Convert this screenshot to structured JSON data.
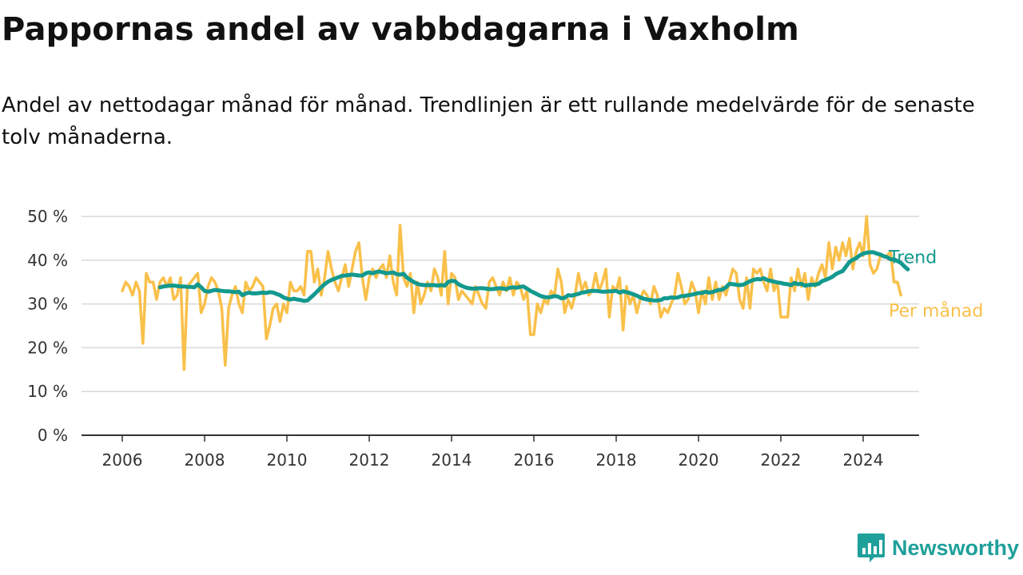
{
  "title": "Pappornas andel av vabbdagarna i Vaxholm",
  "subtitle": "Andel av nettodagar månad för månad. Trendlinjen är ett rullande medelvärde för de senaste tolv månaderna.",
  "brand": {
    "name": "Newsworthy",
    "color": "#1fa09a",
    "icon": "newsworthy-chart-bubble-icon"
  },
  "colors": {
    "trend": "#13998e",
    "monthly": "#f9c04a",
    "grid": "#d9d9d9",
    "axis": "#333333"
  },
  "chart_data": {
    "type": "line",
    "x_unit": "year",
    "xticks": [
      2006,
      2008,
      2010,
      2012,
      2014,
      2016,
      2018,
      2020,
      2022,
      2024
    ],
    "xtick_labels": [
      "2006",
      "2008",
      "2010",
      "2012",
      "2014",
      "2016",
      "2018",
      "2020",
      "2022",
      "2024"
    ],
    "xlim": [
      2005.0,
      2025.25
    ],
    "ylim": [
      0,
      50
    ],
    "yticks": [
      0,
      10,
      20,
      30,
      40,
      50
    ],
    "ytick_labels": [
      "0 %",
      "10 %",
      "20 %",
      "30 %",
      "40 %",
      "50 %"
    ],
    "grid": true,
    "legend_placement": "end-of-line labels, right",
    "series": [
      {
        "name": "Per månad",
        "color": "#f9c04a",
        "x_start": 2006.0,
        "x_step_months": 1,
        "values": [
          33,
          35,
          34,
          32,
          35,
          33,
          21,
          37,
          35,
          35,
          31,
          35,
          36,
          34,
          36,
          31,
          32,
          36,
          15,
          34,
          35,
          36,
          37,
          28,
          30,
          34,
          36,
          35,
          33,
          29,
          16,
          29,
          32,
          34,
          30,
          28,
          35,
          33,
          34,
          36,
          35,
          34,
          22,
          25,
          29,
          30,
          26,
          30,
          28,
          35,
          33,
          33,
          34,
          32,
          42,
          42,
          35,
          38,
          32,
          36,
          42,
          38,
          35,
          33,
          36,
          39,
          34,
          38,
          42,
          44,
          36,
          31,
          36,
          38,
          36,
          38,
          39,
          36,
          41,
          35,
          32,
          48,
          36,
          34,
          37,
          28,
          35,
          30,
          32,
          35,
          33,
          38,
          36,
          32,
          42,
          30,
          37,
          36,
          31,
          33,
          32,
          31,
          30,
          34,
          32,
          30,
          29,
          35,
          36,
          34,
          32,
          35,
          33,
          36,
          32,
          35,
          34,
          31,
          33,
          23,
          23,
          30,
          28,
          31,
          30,
          33,
          32,
          38,
          35,
          28,
          31,
          29,
          32,
          37,
          33,
          35,
          32,
          33,
          37,
          33,
          35,
          38,
          27,
          34,
          33,
          36,
          24,
          34,
          30,
          32,
          28,
          31,
          33,
          32,
          30,
          34,
          32,
          27,
          29,
          28,
          30,
          32,
          37,
          34,
          30,
          31,
          35,
          33,
          28,
          33,
          30,
          36,
          31,
          35,
          31,
          34,
          32,
          35,
          38,
          37,
          31,
          29,
          36,
          29,
          38,
          37,
          38,
          35,
          33,
          38,
          33,
          35,
          27,
          27,
          27,
          36,
          33,
          38,
          34,
          37,
          31,
          36,
          34,
          37,
          39,
          36,
          44,
          38,
          43,
          40,
          44,
          41,
          45,
          38,
          42,
          44,
          41,
          50,
          39,
          37,
          38,
          41,
          41,
          41,
          42,
          35,
          35,
          32
        ]
      },
      {
        "name": "Trend",
        "color": "#13998e",
        "x_start": 2006.9167,
        "x_step_months": 1,
        "values": [
          33.8,
          34.0,
          34.1,
          34.2,
          34.2,
          34.1,
          34.0,
          34.0,
          33.9,
          33.9,
          33.8,
          34.5,
          33.8,
          33.0,
          32.8,
          33.0,
          33.2,
          33.1,
          33.0,
          32.9,
          32.9,
          32.8,
          32.7,
          32.8,
          32.0,
          32.4,
          32.6,
          32.4,
          32.4,
          32.5,
          32.6,
          32.5,
          32.7,
          32.6,
          32.3,
          32.0,
          31.5,
          31.2,
          31.0,
          31.2,
          31.0,
          30.9,
          30.7,
          30.8,
          31.5,
          32.2,
          33.0,
          33.8,
          34.5,
          35.1,
          35.5,
          35.8,
          36.1,
          36.4,
          36.5,
          36.6,
          36.7,
          36.6,
          36.5,
          36.5,
          37.0,
          37.2,
          37.0,
          37.3,
          37.4,
          37.2,
          37.0,
          37.1,
          37.2,
          36.8,
          36.7,
          36.9,
          36.0,
          35.5,
          35.0,
          34.6,
          34.4,
          34.3,
          34.3,
          34.3,
          34.3,
          34.2,
          34.3,
          34.2,
          35.0,
          35.3,
          35.2,
          34.5,
          34.1,
          33.8,
          33.6,
          33.5,
          33.5,
          33.6,
          33.6,
          33.5,
          33.4,
          33.4,
          33.5,
          33.6,
          33.5,
          33.4,
          33.7,
          33.8,
          33.7,
          33.9,
          34.0,
          33.5,
          33.0,
          32.6,
          32.2,
          31.8,
          31.6,
          31.5,
          31.6,
          31.8,
          31.7,
          31.3,
          31.4,
          32.0,
          31.9,
          32.1,
          32.3,
          32.6,
          32.7,
          32.9,
          33.0,
          33.0,
          32.9,
          32.8,
          32.8,
          32.9,
          32.9,
          33.0,
          32.6,
          32.9,
          32.7,
          32.5,
          32.2,
          31.9,
          31.5,
          31.2,
          31.0,
          30.9,
          30.8,
          30.8,
          30.9,
          31.3,
          31.3,
          31.5,
          31.4,
          31.5,
          31.8,
          31.8,
          32.0,
          32.1,
          32.3,
          32.5,
          32.5,
          32.8,
          32.6,
          32.7,
          33.0,
          33.2,
          33.3,
          33.8,
          34.6,
          34.5,
          34.4,
          34.3,
          34.4,
          34.8,
          35.2,
          35.5,
          35.7,
          35.6,
          35.9,
          35.5,
          35.3,
          35.1,
          34.9,
          34.8,
          34.6,
          34.5,
          34.3,
          34.8,
          34.5,
          34.6,
          34.2,
          34.3,
          34.4,
          34.4,
          34.6,
          35.2,
          35.5,
          35.8,
          36.2,
          36.8,
          37.2,
          37.5,
          38.5,
          39.6,
          40.1,
          40.5,
          41.1,
          41.5,
          41.7,
          41.8,
          41.8,
          41.5,
          41.3,
          40.9,
          40.7,
          40.2,
          40.2,
          39.8,
          39.4,
          38.6,
          37.9
        ]
      }
    ]
  }
}
